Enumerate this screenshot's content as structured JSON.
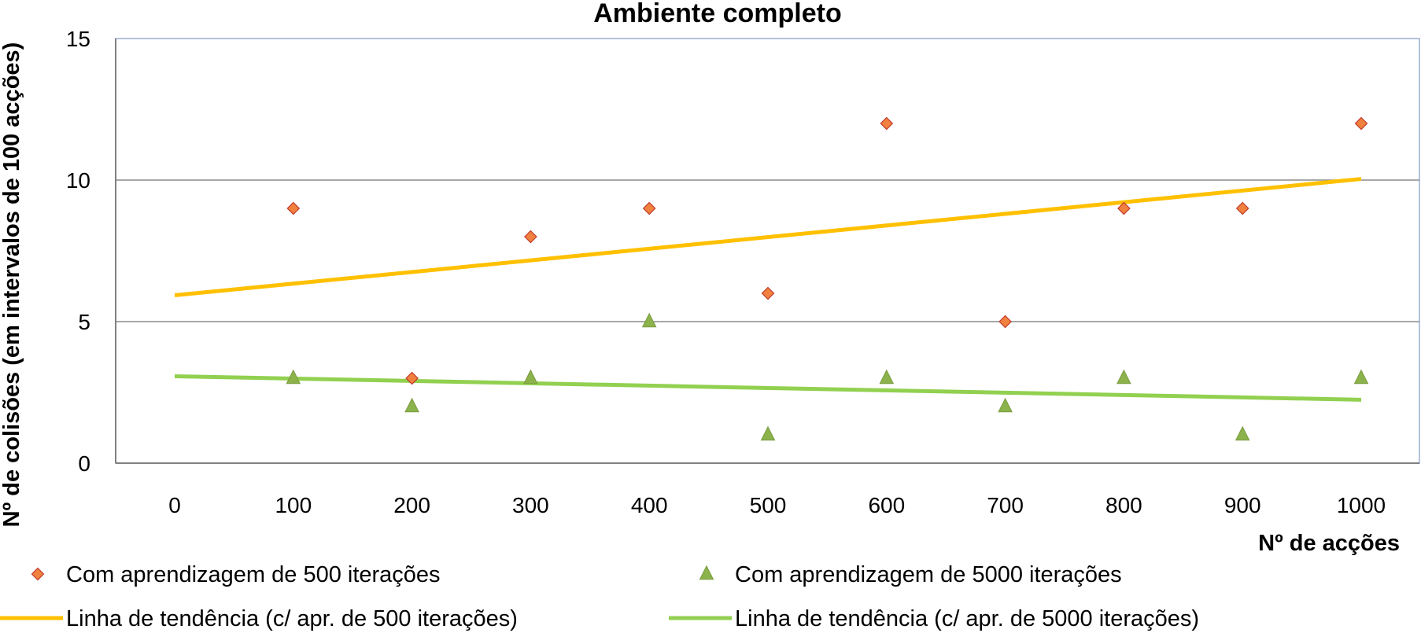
{
  "chart_data": {
    "type": "scatter",
    "title": "Ambiente completo",
    "xlabel": "Nº de acções",
    "ylabel": "Nº de colisões (em intervalos de 100 acções)",
    "xlim": [
      0,
      1000
    ],
    "ylim": [
      0,
      15
    ],
    "x_ticks": [
      "0",
      "100",
      "200",
      "300",
      "400",
      "500",
      "600",
      "700",
      "800",
      "900",
      "1000"
    ],
    "y_ticks": [
      "0",
      "5",
      "10",
      "15"
    ],
    "grid": "horizontal",
    "legend_position": "bottom",
    "series": [
      {
        "name": "Com aprendizagem de 500 iterações",
        "kind": "scatter",
        "marker": "diamond",
        "color": "#f0813e",
        "x": [
          100,
          200,
          300,
          400,
          500,
          600,
          700,
          800,
          900,
          1000
        ],
        "y": [
          9,
          3,
          8,
          9,
          6,
          12,
          5,
          9,
          9,
          12
        ]
      },
      {
        "name": "Com aprendizagem de 5000 iterações",
        "kind": "scatter",
        "marker": "triangle",
        "color": "#8bb24b",
        "x": [
          100,
          200,
          300,
          400,
          500,
          600,
          700,
          800,
          900,
          1000
        ],
        "y": [
          3,
          2,
          3,
          5,
          1,
          3,
          2,
          3,
          1,
          3
        ]
      },
      {
        "name": "Linha de tendência (c/ apr. de 500 iterações)",
        "kind": "trendline",
        "color": "#ffc000",
        "x": [
          0,
          1000
        ],
        "y": [
          5.93,
          10.04
        ]
      },
      {
        "name": "Linha de tendência (c/ apr. de 5000 iterações)",
        "kind": "trendline",
        "color": "#92d050",
        "x": [
          0,
          1000
        ],
        "y": [
          3.07,
          2.24
        ]
      }
    ]
  }
}
